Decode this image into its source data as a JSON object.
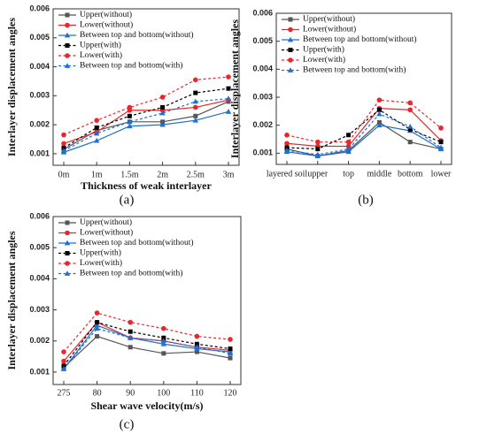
{
  "chart_data": [
    {
      "type": "line",
      "label": "(a)",
      "ylabel": "Interlayer displacement angles",
      "xlabel": "Thickness of weak interlayer",
      "categories": [
        "0m",
        "1m",
        "1.5m",
        "2m",
        "2.5m",
        "3m"
      ],
      "ylim": [
        0.0006,
        0.006
      ],
      "yticks": [
        0.001,
        0.002,
        0.003,
        0.004,
        0.005,
        0.006
      ],
      "legend": "upper left",
      "series": [
        {
          "name": "Upper(without)",
          "color": "#555555",
          "marker": "square",
          "linestyle": "solid",
          "values": [
            0.00115,
            0.0018,
            0.0021,
            0.0021,
            0.0023,
            0.0028
          ]
        },
        {
          "name": "Lower(without)",
          "color": "#e8262b",
          "marker": "circle",
          "linestyle": "solid",
          "values": [
            0.00135,
            0.00175,
            0.0025,
            0.0025,
            0.0026,
            0.00285
          ]
        },
        {
          "name": "Between top and bottom(without)",
          "color": "#1f6fd1",
          "marker": "triangle",
          "linestyle": "solid",
          "values": [
            0.00105,
            0.00145,
            0.00195,
            0.002,
            0.00215,
            0.00245
          ]
        },
        {
          "name": "Upper(with)",
          "color": "#000000",
          "marker": "square",
          "linestyle": "dashed",
          "values": [
            0.0012,
            0.0019,
            0.0023,
            0.0026,
            0.0031,
            0.00325
          ]
        },
        {
          "name": "Lower(with)",
          "color": "#e8262b",
          "marker": "circle",
          "linestyle": "dashed",
          "values": [
            0.00165,
            0.00215,
            0.0026,
            0.00295,
            0.00355,
            0.00365
          ]
        },
        {
          "name": "Between top and bottom(with)",
          "color": "#1f6fd1",
          "marker": "triangle",
          "linestyle": "dashed",
          "values": [
            0.0011,
            0.0017,
            0.0021,
            0.0024,
            0.0028,
            0.0029
          ]
        }
      ]
    },
    {
      "type": "line",
      "label": "(b)",
      "ylabel": "Interlayer displacement angles",
      "categories": [
        "layered soil",
        "upper",
        "top",
        "middle",
        "bottom",
        "lower"
      ],
      "ylim": [
        0.0006,
        0.006
      ],
      "yticks": [
        0.001,
        0.002,
        0.003,
        0.004,
        0.005,
        0.006
      ],
      "legend": "upper left",
      "series": [
        {
          "name": "Upper(without)",
          "color": "#555555",
          "marker": "square",
          "linestyle": "solid",
          "values": [
            0.00115,
            0.0009,
            0.0011,
            0.0021,
            0.0014,
            0.00115
          ]
        },
        {
          "name": "Lower(without)",
          "color": "#e8262b",
          "marker": "circle",
          "linestyle": "solid",
          "values": [
            0.00135,
            0.00125,
            0.00125,
            0.0026,
            0.00255,
            0.00145
          ]
        },
        {
          "name": "Between top and bottom(without)",
          "color": "#1f6fd1",
          "marker": "triangle",
          "linestyle": "solid",
          "values": [
            0.00105,
            0.0009,
            0.00105,
            0.002,
            0.0018,
            0.00115
          ]
        },
        {
          "name": "Upper(with)",
          "color": "#000000",
          "marker": "square",
          "linestyle": "dashed",
          "values": [
            0.0012,
            0.00115,
            0.00165,
            0.00255,
            0.00185,
            0.0014
          ]
        },
        {
          "name": "Lower(with)",
          "color": "#e8262b",
          "marker": "circle",
          "linestyle": "dashed",
          "values": [
            0.00165,
            0.0014,
            0.0014,
            0.0029,
            0.0028,
            0.0019
          ]
        },
        {
          "name": "Between top and bottom(with)",
          "color": "#1f6fd1",
          "marker": "triangle",
          "linestyle": "dashed",
          "values": [
            0.0011,
            0.00095,
            0.00115,
            0.0024,
            0.00195,
            0.0012
          ]
        }
      ]
    },
    {
      "type": "line",
      "label": "(c)",
      "ylabel": "Interlayer displacement angles",
      "xlabel": "Shear wave velocity(m/s)",
      "categories": [
        "275",
        "80",
        "90",
        "100",
        "110",
        "120"
      ],
      "ylim": [
        0.0006,
        0.006
      ],
      "yticks": [
        0.001,
        0.002,
        0.003,
        0.004,
        0.005,
        0.006
      ],
      "legend": "upper left",
      "series": [
        {
          "name": "Upper(without)",
          "color": "#555555",
          "marker": "square",
          "linestyle": "solid",
          "values": [
            0.00115,
            0.00215,
            0.0018,
            0.0016,
            0.00165,
            0.00145
          ]
        },
        {
          "name": "Lower(without)",
          "color": "#e8262b",
          "marker": "circle",
          "linestyle": "solid",
          "values": [
            0.00135,
            0.0026,
            0.0021,
            0.002,
            0.0018,
            0.0017
          ]
        },
        {
          "name": "Between top and bottom(without)",
          "color": "#1f6fd1",
          "marker": "triangle",
          "linestyle": "solid",
          "values": [
            0.0011,
            0.0025,
            0.0021,
            0.0019,
            0.00175,
            0.00165
          ]
        },
        {
          "name": "Upper(with)",
          "color": "#000000",
          "marker": "square",
          "linestyle": "dashed",
          "values": [
            0.0012,
            0.0026,
            0.0023,
            0.0021,
            0.0019,
            0.00175
          ]
        },
        {
          "name": "Lower(with)",
          "color": "#e8262b",
          "marker": "circle",
          "linestyle": "dashed",
          "values": [
            0.00165,
            0.0029,
            0.0026,
            0.0024,
            0.00215,
            0.00205
          ]
        },
        {
          "name": "Between top and bottom(with)",
          "color": "#1f6fd1",
          "marker": "triangle",
          "linestyle": "dashed",
          "values": [
            0.0011,
            0.0024,
            0.0021,
            0.002,
            0.0018,
            0.0016
          ]
        }
      ]
    }
  ]
}
